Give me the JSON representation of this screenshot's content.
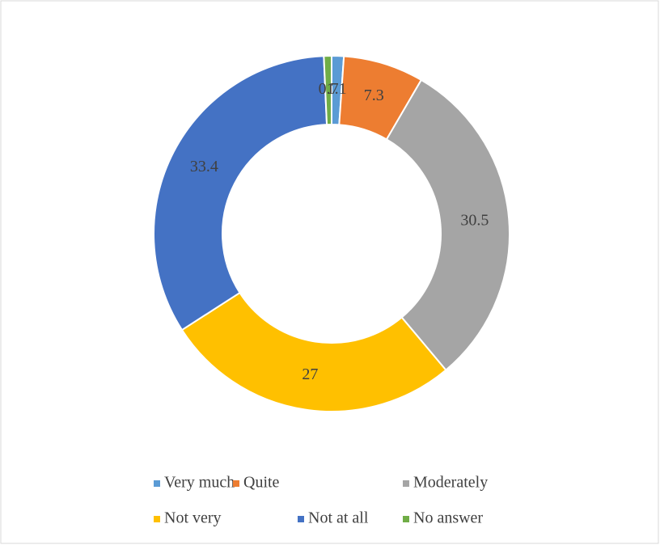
{
  "chart_data": {
    "type": "donut",
    "categories": [
      "Very much",
      "Quite",
      "Moderately",
      "Not very",
      "Not at all",
      "No answer"
    ],
    "values": [
      1.1,
      7.3,
      30.5,
      27,
      33.4,
      0.7
    ],
    "colors": [
      "#5b9bd5",
      "#ed7d31",
      "#a5a5a5",
      "#ffc000",
      "#4472c4",
      "#70ad47"
    ],
    "legend": "bottom"
  }
}
